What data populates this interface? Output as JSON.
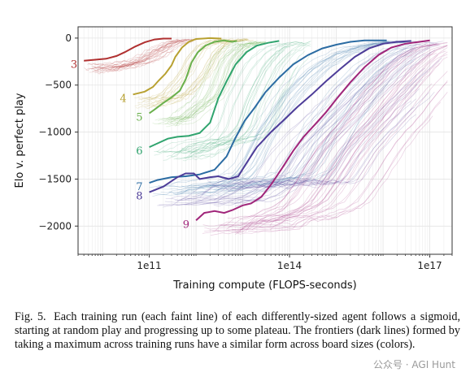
{
  "chart_data": {
    "type": "line",
    "xlabel": "Training compute (FLOPS-seconds)",
    "ylabel": "Elo v. perfect play",
    "xscale": "log",
    "xlim": [
      3000000000.0,
      3e+17
    ],
    "ylim": [
      -2300,
      120
    ],
    "xticks": [
      {
        "value": 100000000000.0,
        "label": "1e11"
      },
      {
        "value": 100000000000000.0,
        "label": "1e14"
      },
      {
        "value": 1e+17,
        "label": "1e17"
      }
    ],
    "yticks": [
      {
        "value": 0,
        "label": "0"
      },
      {
        "value": -500,
        "label": "−500"
      },
      {
        "value": -1000,
        "label": "−1000"
      },
      {
        "value": -1500,
        "label": "−1500"
      },
      {
        "value": -2000,
        "label": "−2000"
      }
    ],
    "grid": true,
    "series": [
      {
        "name": "3",
        "color": "#b03030",
        "frontier": [
          [
            4000000000.0,
            -240
          ],
          [
            7000000000.0,
            -230
          ],
          [
            12000000000.0,
            -220
          ],
          [
            20000000000.0,
            -190
          ],
          [
            30000000000.0,
            -150
          ],
          [
            50000000000.0,
            -90
          ],
          [
            80000000000.0,
            -45
          ],
          [
            130000000000.0,
            -15
          ],
          [
            200000000000.0,
            -5
          ],
          [
            300000000000.0,
            -5
          ]
        ]
      },
      {
        "name": "4",
        "color": "#b8a131",
        "frontier": [
          [
            45000000000.0,
            -600
          ],
          [
            80000000000.0,
            -570
          ],
          [
            120000000000.0,
            -520
          ],
          [
            160000000000.0,
            -450
          ],
          [
            220000000000.0,
            -380
          ],
          [
            300000000000.0,
            -290
          ],
          [
            360000000000.0,
            -200
          ],
          [
            500000000000.0,
            -100
          ],
          [
            700000000000.0,
            -40
          ],
          [
            1000000000000.0,
            -10
          ],
          [
            2000000000000.0,
            0
          ],
          [
            3500000000000.0,
            -5
          ]
        ]
      },
      {
        "name": "5",
        "color": "#6ab04c",
        "frontier": [
          [
            100000000000.0,
            -800
          ],
          [
            130000000000.0,
            -760
          ],
          [
            200000000000.0,
            -690
          ],
          [
            300000000000.0,
            -630
          ],
          [
            450000000000.0,
            -560
          ],
          [
            600000000000.0,
            -440
          ],
          [
            800000000000.0,
            -260
          ],
          [
            1100000000000.0,
            -150
          ],
          [
            1600000000000.0,
            -80
          ],
          [
            2500000000000.0,
            -40
          ],
          [
            4000000000000.0,
            -25
          ],
          [
            6000000000000.0,
            -40
          ],
          [
            7500000000000.0,
            -30
          ]
        ]
      },
      {
        "name": "6",
        "color": "#30a46e",
        "frontier": [
          [
            100000000000.0,
            -1160
          ],
          [
            150000000000.0,
            -1120
          ],
          [
            250000000000.0,
            -1070
          ],
          [
            400000000000.0,
            -1050
          ],
          [
            700000000000.0,
            -1040
          ],
          [
            1200000000000.0,
            -1010
          ],
          [
            2000000000000.0,
            -900
          ],
          [
            3000000000000.0,
            -640
          ],
          [
            4500000000000.0,
            -460
          ],
          [
            7000000000000.0,
            -280
          ],
          [
            12000000000000.0,
            -150
          ],
          [
            20000000000000.0,
            -80
          ],
          [
            35000000000000.0,
            -50
          ],
          [
            60000000000000.0,
            -30
          ]
        ]
      },
      {
        "name": "7",
        "color": "#2c6ca3",
        "frontier": [
          [
            100000000000.0,
            -1540
          ],
          [
            150000000000.0,
            -1510
          ],
          [
            300000000000.0,
            -1480
          ],
          [
            600000000000.0,
            -1470
          ],
          [
            1200000000000.0,
            -1450
          ],
          [
            2500000000000.0,
            -1400
          ],
          [
            4500000000000.0,
            -1260
          ],
          [
            7000000000000.0,
            -1060
          ],
          [
            11000000000000.0,
            -880
          ],
          [
            18000000000000.0,
            -740
          ],
          [
            30000000000000.0,
            -580
          ],
          [
            60000000000000.0,
            -420
          ],
          [
            120000000000000.0,
            -280
          ],
          [
            250000000000000.0,
            -180
          ],
          [
            500000000000000.0,
            -110
          ],
          [
            1000000000000000.0,
            -70
          ],
          [
            2000000000000000.0,
            -40
          ],
          [
            4000000000000000.0,
            -25
          ],
          [
            8000000000000000.0,
            -25
          ],
          [
            1.2e+16,
            -25
          ]
        ]
      },
      {
        "name": "8",
        "color": "#4d3c98",
        "frontier": [
          [
            100000000000.0,
            -1640
          ],
          [
            200000000000.0,
            -1580
          ],
          [
            400000000000.0,
            -1480
          ],
          [
            600000000000.0,
            -1440
          ],
          [
            900000000000.0,
            -1440
          ],
          [
            1200000000000.0,
            -1500
          ],
          [
            2000000000000.0,
            -1480
          ],
          [
            3000000000000.0,
            -1470
          ],
          [
            5000000000000.0,
            -1500
          ],
          [
            8000000000000.0,
            -1470
          ],
          [
            12000000000000.0,
            -1330
          ],
          [
            20000000000000.0,
            -1160
          ],
          [
            40000000000000.0,
            -1000
          ],
          [
            80000000000000.0,
            -860
          ],
          [
            150000000000000.0,
            -730
          ],
          [
            300000000000000.0,
            -600
          ],
          [
            600000000000000.0,
            -460
          ],
          [
            1200000000000000.0,
            -330
          ],
          [
            2500000000000000.0,
            -200
          ],
          [
            5000000000000000.0,
            -110
          ],
          [
            1e+16,
            -60
          ],
          [
            2e+16,
            -40
          ],
          [
            4e+16,
            -30
          ]
        ]
      },
      {
        "name": "9",
        "color": "#a0257a",
        "frontier": [
          [
            1000000000000.0,
            -1940
          ],
          [
            1500000000000.0,
            -1860
          ],
          [
            2500000000000.0,
            -1840
          ],
          [
            4000000000000.0,
            -1860
          ],
          [
            6000000000000.0,
            -1830
          ],
          [
            10000000000000.0,
            -1780
          ],
          [
            15000000000000.0,
            -1760
          ],
          [
            25000000000000.0,
            -1690
          ],
          [
            40000000000000.0,
            -1560
          ],
          [
            70000000000000.0,
            -1380
          ],
          [
            120000000000000.0,
            -1200
          ],
          [
            200000000000000.0,
            -1050
          ],
          [
            350000000000000.0,
            -920
          ],
          [
            600000000000000.0,
            -790
          ],
          [
            1000000000000000.0,
            -650
          ],
          [
            2000000000000000.0,
            -470
          ],
          [
            4000000000000000.0,
            -310
          ],
          [
            8000000000000000.0,
            -180
          ],
          [
            1.5e+16,
            -100
          ],
          [
            3e+16,
            -60
          ],
          [
            6e+16,
            -40
          ],
          [
            1e+17,
            -25
          ]
        ]
      }
    ]
  },
  "caption": {
    "label": "Fig. 5.",
    "text": "Each training run (each faint line) of each differently-sized agent follows a sigmoid, starting at random play and progressing up to some plateau. The frontiers (dark lines) formed by taking a maximum across training runs have a similar form across board sizes (colors)."
  },
  "watermark": "公众号 · AGI Hunt"
}
